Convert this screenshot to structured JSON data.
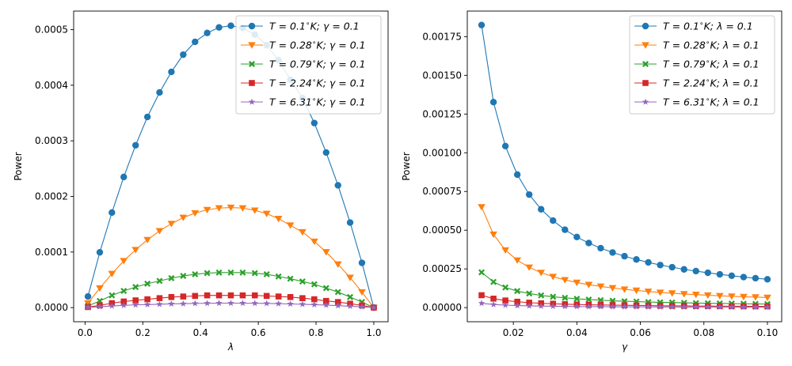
{
  "chart_data": [
    {
      "type": "line",
      "xlabel": "λ",
      "ylabel": "Power",
      "xlim": [
        -0.0395,
        1.0495
      ],
      "ylim": [
        -2.54e-05,
        0.0005334
      ],
      "xticks": [
        0.0,
        0.2,
        0.4,
        0.6,
        0.8,
        1.0
      ],
      "xtick_labels": [
        "0.0",
        "0.2",
        "0.4",
        "0.6",
        "0.8",
        "1.0"
      ],
      "yticks": [
        0.0,
        0.0001,
        0.0002,
        0.0003,
        0.0004,
        0.0005
      ],
      "ytick_labels": [
        "0.0000",
        "0.0001",
        "0.0002",
        "0.0003",
        "0.0004",
        "0.0005"
      ],
      "legend_position": "top-right",
      "x": [
        0.01,
        0.051,
        0.093,
        0.134,
        0.175,
        0.216,
        0.258,
        0.299,
        0.34,
        0.381,
        0.423,
        0.464,
        0.505,
        0.546,
        0.588,
        0.629,
        0.67,
        0.711,
        0.753,
        0.794,
        0.835,
        0.876,
        0.918,
        0.959,
        1.0
      ],
      "series": [
        {
          "name": "T=0.1°K; γ=0.1",
          "label_main": "T = 0.1",
          "label_sub": "∘",
          "label_rest": "K; γ = 0.1",
          "color": "#1f77b4",
          "marker": "circle",
          "values": [
            2e-05,
            9.95e-05,
            0.000171,
            0.000235,
            0.000292,
            0.000343,
            0.000387,
            0.000424,
            0.000455,
            0.000478,
            0.000494,
            0.000504,
            0.000507,
            0.000503,
            0.000491,
            0.000472,
            0.000445,
            0.00041,
            0.000377,
            0.000332,
            0.000279,
            0.00022,
            0.000153,
            8.05e-05,
            0.0
          ]
        },
        {
          "name": "T=0.28°K; γ=0.1",
          "label_main": "T = 0.28",
          "label_sub": "∘",
          "label_rest": "K; γ = 0.1",
          "color": "#ff7f0e",
          "marker": "triangle-down",
          "values": [
            8e-06,
            3.5e-05,
            6.1e-05,
            8.4e-05,
            0.000104,
            0.000122,
            0.000138,
            0.000151,
            0.000162,
            0.00017,
            0.000176,
            0.000179,
            0.00018,
            0.000179,
            0.000175,
            0.000169,
            0.00016,
            0.000148,
            0.000136,
            0.000119,
            0.0001,
            7.8e-05,
            5.4e-05,
            2.8e-05,
            0.0
          ]
        },
        {
          "name": "T=0.79°K; γ=0.1",
          "label_main": "T = 0.79",
          "label_sub": "∘",
          "label_rest": "K; γ = 0.1",
          "color": "#2ca02c",
          "marker": "x-filled",
          "values": [
            3e-06,
            1.2e-05,
            2.2e-05,
            3e-05,
            3.7e-05,
            4.3e-05,
            4.8e-05,
            5.3e-05,
            5.7e-05,
            6e-05,
            6.2e-05,
            6.3e-05,
            6.3e-05,
            6.3e-05,
            6.2e-05,
            6e-05,
            5.6e-05,
            5.2e-05,
            4.7e-05,
            4.2e-05,
            3.5e-05,
            2.8e-05,
            1.9e-05,
            1e-05,
            0.0
          ]
        },
        {
          "name": "T=2.24°K; γ=0.1",
          "label_main": "T = 2.24",
          "label_sub": "∘",
          "label_rest": "K; γ = 0.1",
          "color": "#d62728",
          "marker": "square",
          "values": [
            1e-06,
            4e-06,
            8e-06,
            1.1e-05,
            1.3e-05,
            1.5e-05,
            1.7e-05,
            1.9e-05,
            2e-05,
            2.1e-05,
            2.2e-05,
            2.2e-05,
            2.2e-05,
            2.2e-05,
            2.2e-05,
            2.1e-05,
            2e-05,
            1.9e-05,
            1.7e-05,
            1.5e-05,
            1.2e-05,
            1e-05,
            7e-06,
            4e-06,
            0.0
          ]
        },
        {
          "name": "T=6.31°K; γ=0.1",
          "label_main": "T = 6.31",
          "label_sub": "∘",
          "label_rest": "K; γ = 0.1",
          "color": "#9467bd",
          "marker": "star",
          "values": [
            5e-07,
            1.5e-06,
            3e-06,
            4e-06,
            5e-06,
            5.5e-06,
            6e-06,
            6.8e-06,
            7e-06,
            7.5e-06,
            7.8e-06,
            8e-06,
            8e-06,
            8e-06,
            7.8e-06,
            7.5e-06,
            7.1e-06,
            6.6e-06,
            6e-06,
            5.3e-06,
            4.5e-06,
            3.5e-06,
            2.4e-06,
            1.3e-06,
            0.0
          ]
        }
      ]
    },
    {
      "type": "line",
      "xlabel": "γ",
      "ylabel": "Power",
      "xlim": [
        0.0055,
        0.1045
      ],
      "ylim": [
        -9.12e-05,
        0.0019152
      ],
      "xticks": [
        0.02,
        0.04,
        0.06,
        0.08,
        0.1
      ],
      "xtick_labels": [
        "0.02",
        "0.04",
        "0.06",
        "0.08",
        "0.10"
      ],
      "yticks": [
        0.0,
        0.00025,
        0.0005,
        0.00075,
        0.001,
        0.00125,
        0.0015,
        0.00175
      ],
      "ytick_labels": [
        "0.00000",
        "0.00025",
        "0.00050",
        "0.00075",
        "0.00100",
        "0.00125",
        "0.00150",
        "0.00175"
      ],
      "legend_position": "top-right",
      "x": [
        0.01,
        0.01375,
        0.0175,
        0.02125,
        0.025,
        0.02875,
        0.0325,
        0.03625,
        0.04,
        0.04375,
        0.0475,
        0.05125,
        0.055,
        0.05875,
        0.0625,
        0.06625,
        0.07,
        0.07375,
        0.0775,
        0.08125,
        0.085,
        0.08875,
        0.0925,
        0.09625,
        0.1
      ],
      "series": [
        {
          "name": "T=0.1°K; λ=0.1",
          "label_main": "T = 0.1",
          "label_sub": "∘",
          "label_rest": "K; λ = 0.1",
          "color": "#1f77b4",
          "marker": "circle",
          "values": [
            0.001825,
            0.001327,
            0.001043,
            0.000859,
            0.00073,
            0.000635,
            0.000562,
            0.000503,
            0.000456,
            0.000417,
            0.000384,
            0.000356,
            0.000332,
            0.000311,
            0.000292,
            0.000275,
            0.000261,
            0.000247,
            0.000236,
            0.000225,
            0.000215,
            0.000206,
            0.000197,
            0.00019,
            0.000183
          ]
        },
        {
          "name": "T=0.28°K; λ=0.1",
          "label_main": "T = 0.28",
          "label_sub": "∘",
          "label_rest": "K; λ = 0.1",
          "color": "#ff7f0e",
          "marker": "triangle-down",
          "values": [
            0.00065,
            0.000473,
            0.000371,
            0.000306,
            0.00026,
            0.000226,
            0.0002,
            0.000179,
            0.000162,
            0.000148,
            0.000137,
            0.000127,
            0.000118,
            0.000111,
            0.000104,
            9.8e-05,
            9.3e-05,
            8.8e-05,
            8.4e-05,
            8e-05,
            7.6e-05,
            7.3e-05,
            7e-05,
            6.8e-05,
            6.5e-05
          ]
        },
        {
          "name": "T=0.79°K; λ=0.1",
          "label_main": "T = 0.79",
          "label_sub": "∘",
          "label_rest": "K; λ = 0.1",
          "color": "#2ca02c",
          "marker": "x-filled",
          "values": [
            0.000228,
            0.000166,
            0.00013,
            0.000107,
            9.1e-05,
            7.9e-05,
            7e-05,
            6.3e-05,
            5.7e-05,
            5.2e-05,
            4.8e-05,
            4.4e-05,
            4.1e-05,
            3.9e-05,
            3.6e-05,
            3.4e-05,
            3.3e-05,
            3.1e-05,
            2.9e-05,
            2.8e-05,
            2.7e-05,
            2.6e-05,
            2.5e-05,
            2.4e-05,
            2.3e-05
          ]
        },
        {
          "name": "T=2.24°K; λ=0.1",
          "label_main": "T = 2.24",
          "label_sub": "∘",
          "label_rest": "K; λ = 0.1",
          "color": "#d62728",
          "marker": "square",
          "values": [
            8e-05,
            5.8e-05,
            4.6e-05,
            3.8e-05,
            3.2e-05,
            2.8e-05,
            2.5e-05,
            2.2e-05,
            2e-05,
            1.8e-05,
            1.7e-05,
            1.6e-05,
            1.5e-05,
            1.4e-05,
            1.3e-05,
            1.2e-05,
            1.1e-05,
            1.1e-05,
            1e-05,
            1e-05,
            9.5e-06,
            9e-06,
            8.7e-06,
            8.3e-06,
            8e-06
          ]
        },
        {
          "name": "T=6.31°K; λ=0.1",
          "label_main": "T = 6.31",
          "label_sub": "∘",
          "label_rest": "K; λ = 0.1",
          "color": "#9467bd",
          "marker": "star",
          "values": [
            2.8e-05,
            2e-05,
            1.6e-05,
            1.3e-05,
            1.1e-05,
            9.8e-06,
            8.7e-06,
            7.8e-06,
            7e-06,
            6.4e-06,
            5.9e-06,
            5.5e-06,
            5.1e-06,
            4.8e-06,
            4.5e-06,
            4.3e-06,
            4e-06,
            3.8e-06,
            3.6e-06,
            3.5e-06,
            3.3e-06,
            3.2e-06,
            3e-06,
            2.9e-06,
            2.8e-06
          ]
        }
      ]
    }
  ]
}
